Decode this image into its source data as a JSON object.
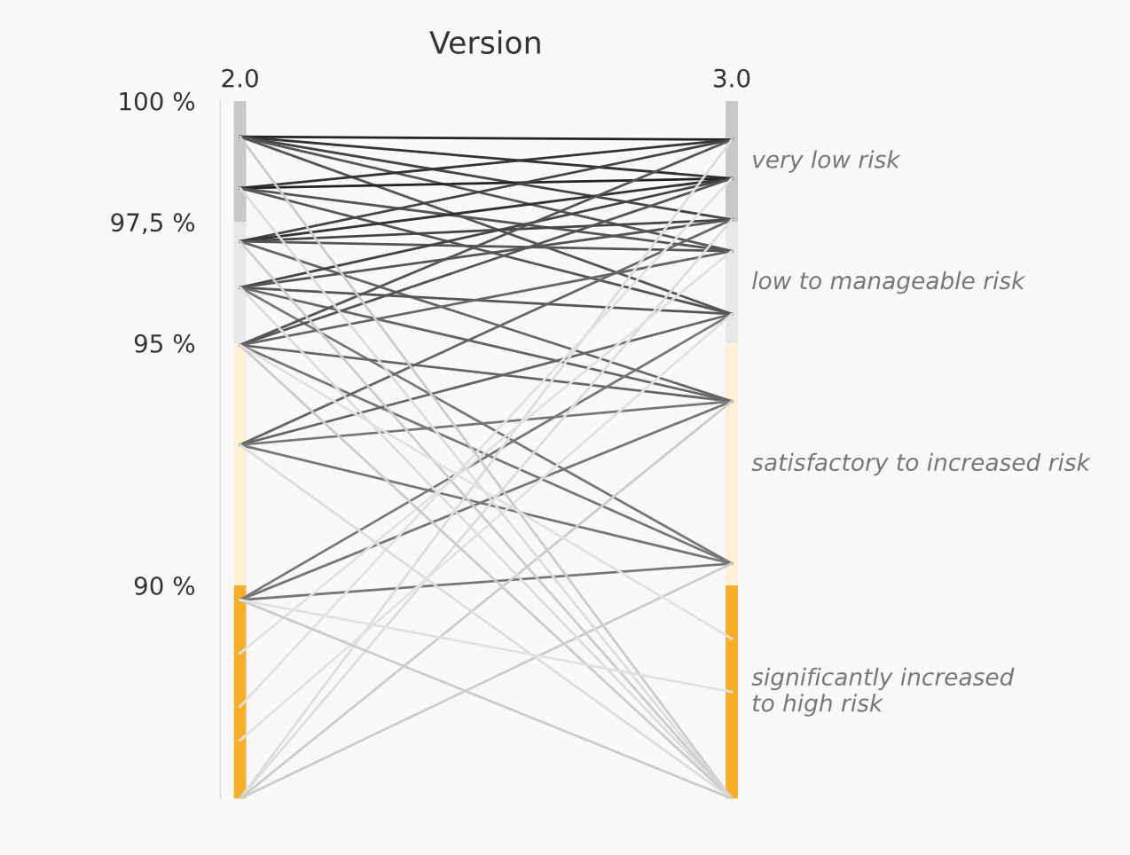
{
  "chart_data": {
    "type": "line",
    "title": "Version",
    "categories": [
      "2.0",
      "3.0"
    ],
    "ylim": [
      85.6,
      100
    ],
    "yticks": [
      {
        "value": 100,
        "label": "100 %"
      },
      {
        "value": 97.5,
        "label": "97,5 %"
      },
      {
        "value": 95,
        "label": "95 %"
      },
      {
        "value": 90,
        "label": "90 %"
      }
    ],
    "grid": false,
    "legend": false,
    "marker": "none",
    "line_style": "solid",
    "annotations": [
      "very low risk",
      "low to manageable risk",
      "satisfactory to increased risk",
      "significantly increased\nto high risk"
    ],
    "series": [
      {
        "type": "bar",
        "color": "#f7ae2b",
        "base": [
          85.6,
          85.6
        ],
        "values": [
          4.4,
          4.4
        ]
      },
      {
        "type": "bar",
        "color": "#fdf1d6",
        "base": [
          90,
          90
        ],
        "values": [
          5,
          5
        ]
      },
      {
        "type": "bar",
        "color": "#e8e8e8",
        "base": [
          95,
          95
        ],
        "values": [
          2.5,
          2.5
        ]
      },
      {
        "type": "bar",
        "color": "#c8c8c8",
        "base": [
          97.5,
          97.5
        ],
        "values": [
          2.5,
          2.5
        ]
      },
      {
        "color": "#222222",
        "values": [
          99.26,
          99.2
        ]
      },
      {
        "color": "#333333",
        "values": [
          99.26,
          98.4
        ]
      },
      {
        "color": "#444444",
        "values": [
          99.26,
          97.55
        ]
      },
      {
        "color": "#555555",
        "values": [
          99.26,
          96.9
        ]
      },
      {
        "color": "#555555",
        "values": [
          99.26,
          95.6
        ]
      },
      {
        "color": "#333333",
        "values": [
          98.2,
          99.2
        ]
      },
      {
        "color": "#222222",
        "values": [
          98.2,
          98.4
        ]
      },
      {
        "color": "#555555",
        "values": [
          98.2,
          96.9
        ]
      },
      {
        "color": "#555555",
        "values": [
          98.2,
          95.6
        ]
      },
      {
        "color": "#444444",
        "values": [
          97.1,
          99.2
        ]
      },
      {
        "color": "#333333",
        "values": [
          97.1,
          98.4
        ]
      },
      {
        "color": "#444444",
        "values": [
          97.1,
          97.55
        ]
      },
      {
        "color": "#555555",
        "values": [
          97.1,
          96.9
        ]
      },
      {
        "color": "#666666",
        "values": [
          97.1,
          93.8
        ]
      },
      {
        "color": "#444444",
        "values": [
          96.15,
          98.4
        ]
      },
      {
        "color": "#555555",
        "values": [
          96.15,
          97.55
        ]
      },
      {
        "color": "#555555",
        "values": [
          96.15,
          95.6
        ]
      },
      {
        "color": "#666666",
        "values": [
          96.15,
          93.8
        ]
      },
      {
        "color": "#777777",
        "values": [
          96.15,
          90.45
        ]
      },
      {
        "color": "#555555",
        "values": [
          94.96,
          99.2
        ]
      },
      {
        "color": "#555555",
        "values": [
          94.96,
          98.4
        ]
      },
      {
        "color": "#666666",
        "values": [
          94.96,
          96.9
        ]
      },
      {
        "color": "#666666",
        "values": [
          94.96,
          93.8
        ]
      },
      {
        "color": "#777777",
        "values": [
          94.96,
          90.45
        ]
      },
      {
        "color": "#666666",
        "values": [
          92.9,
          97.55
        ]
      },
      {
        "color": "#666666",
        "values": [
          92.9,
          95.6
        ]
      },
      {
        "color": "#777777",
        "values": [
          92.9,
          93.8
        ]
      },
      {
        "color": "#777777",
        "values": [
          92.9,
          90.45
        ]
      },
      {
        "color": "#777777",
        "values": [
          89.7,
          95.6
        ]
      },
      {
        "color": "#777777",
        "values": [
          89.7,
          93.8
        ]
      },
      {
        "color": "#777777",
        "values": [
          89.7,
          90.45
        ]
      },
      {
        "color": "#dddddd",
        "values": [
          85.6,
          99.2
        ]
      },
      {
        "color": "#dddddd",
        "values": [
          85.6,
          97.55
        ]
      },
      {
        "color": "#cccccc",
        "values": [
          85.6,
          93.8
        ]
      },
      {
        "color": "#cccccc",
        "values": [
          85.6,
          90.45
        ]
      },
      {
        "color": "#e2e2e2",
        "values": [
          87.5,
          98.4
        ]
      },
      {
        "color": "#e2e2e2",
        "values": [
          88.6,
          96.9
        ]
      },
      {
        "color": "#e2e2e2",
        "values": [
          86.8,
          95.6
        ]
      },
      {
        "color": "#cccccc",
        "values": [
          99.26,
          85.6
        ]
      },
      {
        "color": "#dddddd",
        "values": [
          98.2,
          85.6
        ]
      },
      {
        "color": "#cccccc",
        "values": [
          97.1,
          85.6
        ]
      },
      {
        "color": "#dddddd",
        "values": [
          96.15,
          85.6
        ]
      },
      {
        "color": "#cccccc",
        "values": [
          94.96,
          85.6
        ]
      },
      {
        "color": "#dddddd",
        "values": [
          92.9,
          85.6
        ]
      },
      {
        "color": "#cccccc",
        "values": [
          89.7,
          85.6
        ]
      },
      {
        "color": "#e2e2e2",
        "values": [
          89.7,
          87.8
        ]
      },
      {
        "color": "#e2e2e2",
        "values": [
          94.96,
          88.9
        ]
      }
    ]
  }
}
